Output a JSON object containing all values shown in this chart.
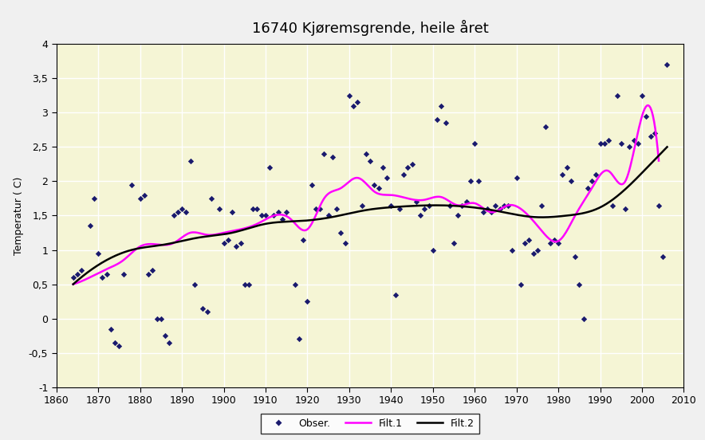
{
  "title": "16740 Kjøremsgrende, heile året",
  "ylabel": "Temperatur ( C)",
  "xlim": [
    1860,
    2010
  ],
  "ylim": [
    -1,
    4
  ],
  "yticks": [
    -1,
    -0.5,
    0,
    0.5,
    1,
    1.5,
    2,
    2.5,
    3,
    3.5,
    4
  ],
  "xticks": [
    1860,
    1870,
    1880,
    1890,
    1900,
    1910,
    1920,
    1930,
    1940,
    1950,
    1960,
    1970,
    1980,
    1990,
    2000,
    2010
  ],
  "background_color": "#f5f5d5",
  "outer_background": "#f0f0f0",
  "scatter_color": "#1a1a6e",
  "filt1_color": "#ff00ff",
  "filt2_color": "#000000",
  "scatter_points": [
    [
      1864,
      0.6
    ],
    [
      1865,
      0.65
    ],
    [
      1866,
      0.7
    ],
    [
      1868,
      1.35
    ],
    [
      1869,
      1.75
    ],
    [
      1870,
      0.95
    ],
    [
      1871,
      0.6
    ],
    [
      1872,
      0.65
    ],
    [
      1873,
      -0.15
    ],
    [
      1874,
      -0.35
    ],
    [
      1875,
      -0.4
    ],
    [
      1876,
      0.65
    ],
    [
      1878,
      1.95
    ],
    [
      1880,
      1.75
    ],
    [
      1881,
      1.8
    ],
    [
      1882,
      0.65
    ],
    [
      1883,
      0.7
    ],
    [
      1884,
      0.0
    ],
    [
      1885,
      0.0
    ],
    [
      1886,
      -0.25
    ],
    [
      1887,
      -0.35
    ],
    [
      1888,
      1.5
    ],
    [
      1889,
      1.55
    ],
    [
      1890,
      1.6
    ],
    [
      1891,
      1.55
    ],
    [
      1892,
      2.3
    ],
    [
      1893,
      0.5
    ],
    [
      1895,
      0.15
    ],
    [
      1896,
      0.1
    ],
    [
      1897,
      1.75
    ],
    [
      1899,
      1.6
    ],
    [
      1900,
      1.1
    ],
    [
      1901,
      1.15
    ],
    [
      1902,
      1.55
    ],
    [
      1903,
      1.05
    ],
    [
      1904,
      1.1
    ],
    [
      1905,
      0.5
    ],
    [
      1906,
      0.5
    ],
    [
      1907,
      1.6
    ],
    [
      1908,
      1.6
    ],
    [
      1909,
      1.5
    ],
    [
      1910,
      1.5
    ],
    [
      1911,
      2.2
    ],
    [
      1912,
      1.5
    ],
    [
      1913,
      1.55
    ],
    [
      1914,
      1.45
    ],
    [
      1915,
      1.55
    ],
    [
      1917,
      0.5
    ],
    [
      1918,
      -0.3
    ],
    [
      1919,
      1.15
    ],
    [
      1920,
      0.25
    ],
    [
      1921,
      1.95
    ],
    [
      1922,
      1.6
    ],
    [
      1923,
      1.6
    ],
    [
      1924,
      2.4
    ],
    [
      1925,
      1.5
    ],
    [
      1926,
      2.35
    ],
    [
      1927,
      1.6
    ],
    [
      1928,
      1.25
    ],
    [
      1929,
      1.1
    ],
    [
      1930,
      3.25
    ],
    [
      1931,
      3.1
    ],
    [
      1932,
      3.15
    ],
    [
      1933,
      1.65
    ],
    [
      1934,
      2.4
    ],
    [
      1935,
      2.3
    ],
    [
      1936,
      1.95
    ],
    [
      1937,
      1.9
    ],
    [
      1938,
      2.2
    ],
    [
      1939,
      2.05
    ],
    [
      1940,
      1.65
    ],
    [
      1941,
      0.35
    ],
    [
      1942,
      1.6
    ],
    [
      1943,
      2.1
    ],
    [
      1944,
      2.2
    ],
    [
      1945,
      2.25
    ],
    [
      1946,
      1.7
    ],
    [
      1947,
      1.5
    ],
    [
      1948,
      1.6
    ],
    [
      1949,
      1.65
    ],
    [
      1950,
      1.0
    ],
    [
      1951,
      2.9
    ],
    [
      1952,
      3.1
    ],
    [
      1953,
      2.85
    ],
    [
      1954,
      1.65
    ],
    [
      1955,
      1.1
    ],
    [
      1956,
      1.5
    ],
    [
      1957,
      1.65
    ],
    [
      1958,
      1.7
    ],
    [
      1959,
      2.0
    ],
    [
      1960,
      2.55
    ],
    [
      1961,
      2.0
    ],
    [
      1962,
      1.55
    ],
    [
      1963,
      1.6
    ],
    [
      1964,
      1.55
    ],
    [
      1965,
      1.65
    ],
    [
      1966,
      1.6
    ],
    [
      1967,
      1.65
    ],
    [
      1968,
      1.65
    ],
    [
      1969,
      1.0
    ],
    [
      1970,
      2.05
    ],
    [
      1971,
      0.5
    ],
    [
      1972,
      1.1
    ],
    [
      1973,
      1.15
    ],
    [
      1974,
      0.95
    ],
    [
      1975,
      1.0
    ],
    [
      1976,
      1.65
    ],
    [
      1977,
      2.8
    ],
    [
      1978,
      1.1
    ],
    [
      1979,
      1.15
    ],
    [
      1980,
      1.1
    ],
    [
      1981,
      2.1
    ],
    [
      1982,
      2.2
    ],
    [
      1983,
      2.0
    ],
    [
      1984,
      0.9
    ],
    [
      1985,
      0.5
    ],
    [
      1986,
      0.0
    ],
    [
      1987,
      1.9
    ],
    [
      1988,
      2.0
    ],
    [
      1989,
      2.1
    ],
    [
      1990,
      2.55
    ],
    [
      1991,
      2.55
    ],
    [
      1992,
      2.6
    ],
    [
      1993,
      1.65
    ],
    [
      1994,
      3.25
    ],
    [
      1995,
      2.55
    ],
    [
      1996,
      1.6
    ],
    [
      1997,
      2.5
    ],
    [
      1998,
      2.6
    ],
    [
      1999,
      2.55
    ],
    [
      2000,
      3.25
    ],
    [
      2001,
      2.95
    ],
    [
      2002,
      2.65
    ],
    [
      2003,
      2.7
    ],
    [
      2004,
      1.65
    ],
    [
      2005,
      0.9
    ],
    [
      2006,
      3.7
    ]
  ],
  "filt1_nodes_x": [
    1864,
    1868,
    1872,
    1876,
    1880,
    1884,
    1888,
    1892,
    1896,
    1900,
    1904,
    1908,
    1912,
    1916,
    1920,
    1924,
    1928,
    1932,
    1936,
    1940,
    1944,
    1948,
    1952,
    1956,
    1960,
    1964,
    1968,
    1972,
    1976,
    1980,
    1984,
    1988,
    1992,
    1996,
    2000,
    2004
  ],
  "filt1_nodes_y": [
    0.5,
    0.6,
    0.72,
    0.85,
    1.05,
    1.08,
    1.1,
    1.25,
    1.22,
    1.25,
    1.3,
    1.38,
    1.5,
    1.45,
    1.3,
    1.75,
    1.9,
    2.05,
    1.85,
    1.8,
    1.75,
    1.73,
    1.77,
    1.65,
    1.68,
    1.55,
    1.65,
    1.55,
    1.28,
    1.13,
    1.5,
    1.9,
    2.15,
    2.0,
    2.95,
    2.3
  ],
  "filt2_nodes_x": [
    1864,
    1870,
    1878,
    1886,
    1894,
    1902,
    1910,
    1918,
    1926,
    1934,
    1942,
    1950,
    1958,
    1966,
    1974,
    1982,
    1990,
    1998,
    2006
  ],
  "filt2_nodes_y": [
    0.5,
    0.78,
    1.0,
    1.08,
    1.18,
    1.25,
    1.38,
    1.42,
    1.48,
    1.58,
    1.63,
    1.65,
    1.63,
    1.56,
    1.48,
    1.5,
    1.62,
    2.0,
    2.5
  ]
}
